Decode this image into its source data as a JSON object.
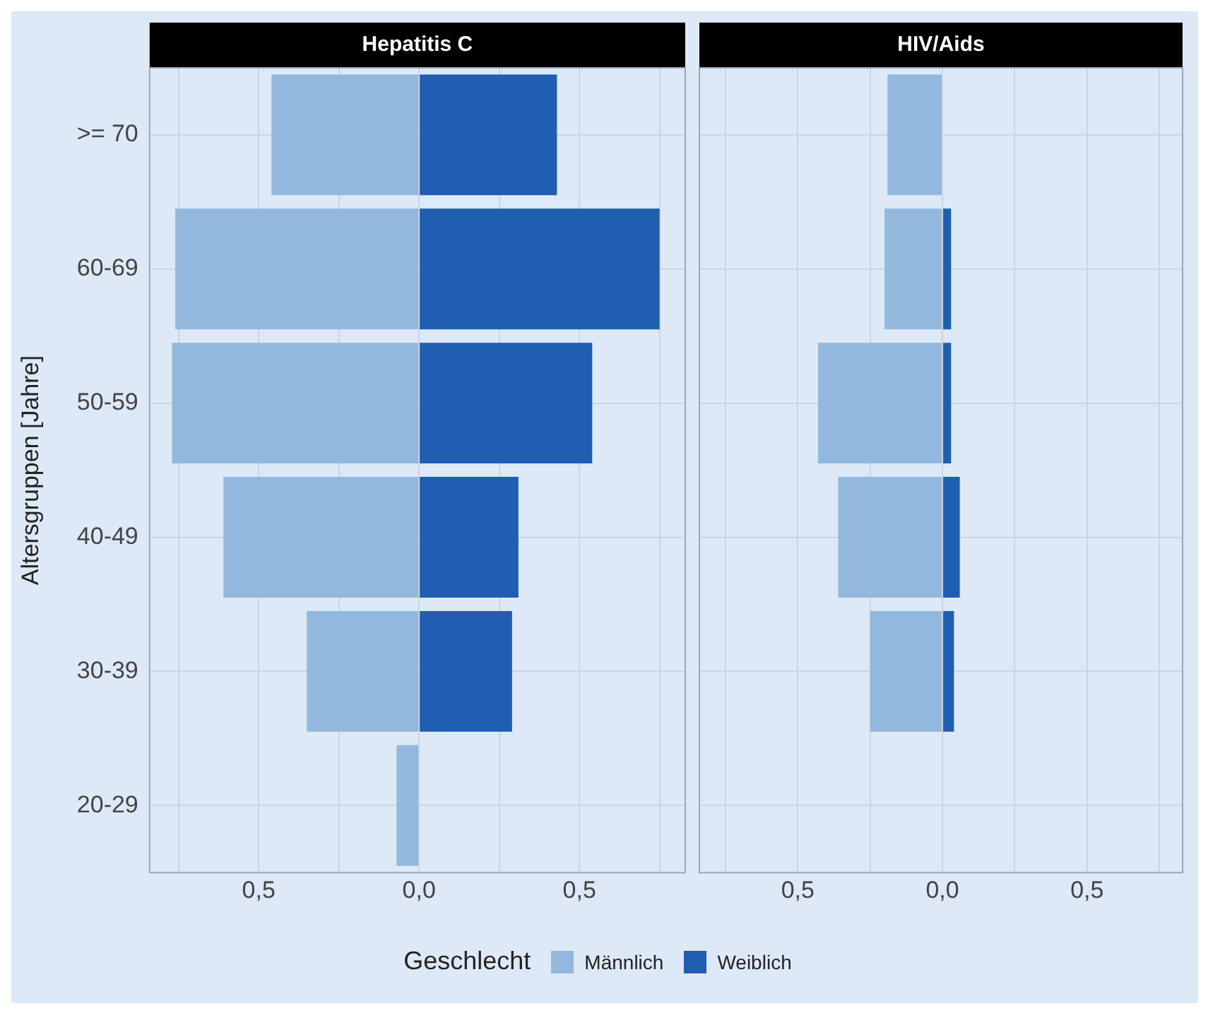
{
  "chart_data": [
    {
      "type": "bar",
      "title": "Hepatitis C",
      "ylabel": "Altersgruppen [Jahre]",
      "legend_title": "Geschlecht",
      "legend": "bottom",
      "orientation": "horizontal",
      "stacked": true,
      "grid": true,
      "categories": [
        ">= 70",
        "60-69",
        "50-59",
        "40-49",
        "30-39",
        "20-29"
      ],
      "series": [
        {
          "name": "Männlich",
          "color": "#92b8de",
          "values": [
            -0.46,
            -0.76,
            -0.77,
            -0.61,
            -0.35,
            -0.07
          ]
        },
        {
          "name": "Weiblich",
          "color": "#1f5eb0",
          "values": [
            0.43,
            0.75,
            0.54,
            0.31,
            0.29,
            0
          ]
        }
      ],
      "xlim": [
        -0.84,
        0.83
      ],
      "xticks": [
        {
          "value": -0.75,
          "label": null
        },
        {
          "value": -0.5,
          "label": "0,5"
        },
        {
          "value": -0.25,
          "label": null
        },
        {
          "value": 0,
          "label": "0,0"
        },
        {
          "value": 0.25,
          "label": null
        },
        {
          "value": 0.5,
          "label": "0,5"
        },
        {
          "value": 0.75,
          "label": null
        }
      ]
    },
    {
      "type": "bar",
      "title": "HIV/Aids",
      "orientation": "horizontal",
      "stacked": true,
      "grid": true,
      "tick_labels": "x",
      "categories": [
        null,
        null,
        null,
        null,
        null,
        null
      ],
      "series": [
        {
          "color": "#92b8de",
          "values": [
            -0.19,
            -0.2,
            -0.43,
            -0.36,
            -0.25,
            null
          ]
        },
        {
          "color": "#1f5eb0",
          "values": [
            0,
            0.03,
            0.03,
            0.06,
            0.04,
            null
          ]
        }
      ],
      "xlim": [
        -0.84,
        0.83
      ],
      "xticks": [
        {
          "value": -0.75,
          "label": null
        },
        {
          "value": -0.5,
          "label": "0,5"
        },
        {
          "value": -0.25,
          "label": null
        },
        {
          "value": 0,
          "label": "0,0"
        },
        {
          "value": 0.25,
          "label": null
        },
        {
          "value": 0.5,
          "label": "0,5"
        },
        {
          "value": 0.75,
          "label": null
        }
      ]
    }
  ]
}
